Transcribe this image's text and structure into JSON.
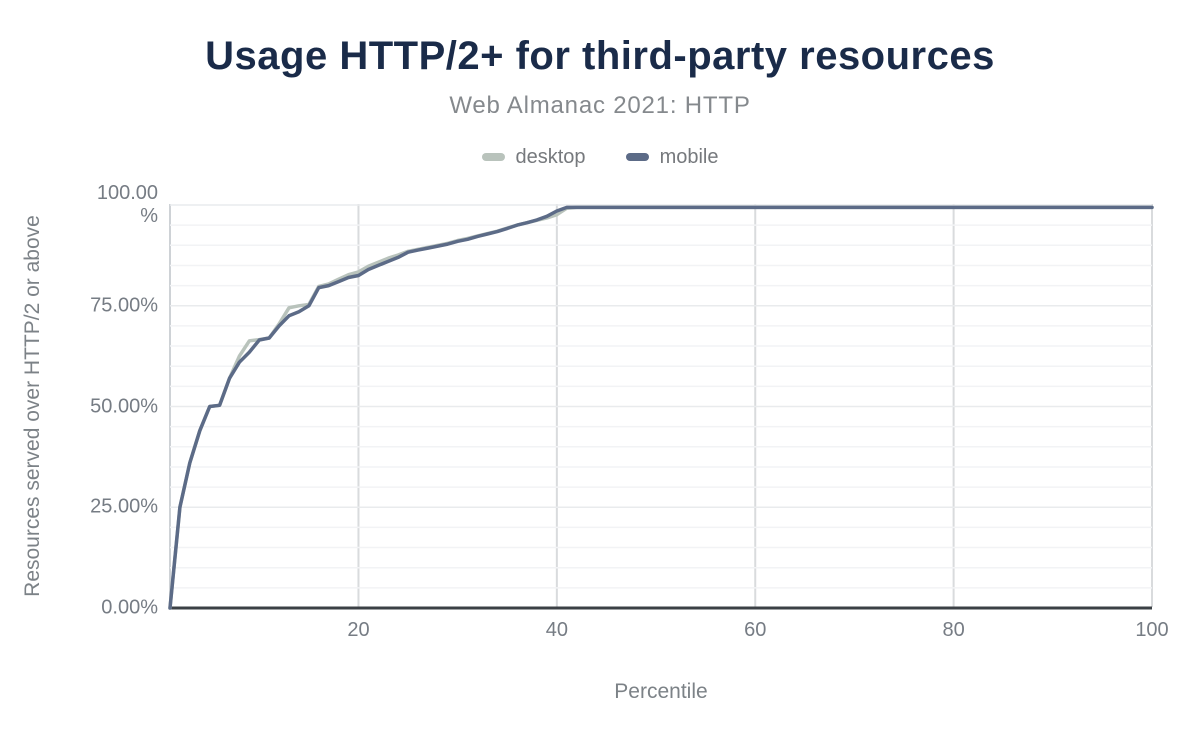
{
  "header": {
    "title": "Usage HTTP/2+ for third-party resources",
    "subtitle": "Web Almanac 2021: HTTP"
  },
  "chart_data": {
    "type": "line",
    "title": "Usage HTTP/2+ for third-party resources",
    "subtitle": "Web Almanac 2021: HTTP",
    "xlabel": "Percentile",
    "ylabel": "Resources served over HTTP/2 or above",
    "x_min": 1,
    "x_max": 100,
    "x_step": 1,
    "ylim": [
      0,
      100
    ],
    "xticks": [
      20,
      40,
      60,
      80,
      100
    ],
    "yticks": [
      {
        "value": 0,
        "label": "0.00%"
      },
      {
        "value": 25,
        "label": "25.00%"
      },
      {
        "value": 50,
        "label": "50.00%"
      },
      {
        "value": 75,
        "label": "75.00%"
      },
      {
        "value": 100,
        "label": "100.00\n%"
      }
    ],
    "minor_gridline_step": 5,
    "grid": true,
    "legend_position": "top",
    "series": [
      {
        "name": "desktop",
        "color": "#b9c3bc",
        "values": [
          0,
          25,
          36,
          44,
          50,
          50.3,
          57,
          62.5,
          66.3,
          66.6,
          67,
          70.5,
          74.5,
          75,
          75.3,
          79.8,
          80.4,
          81.6,
          82.7,
          83.4,
          84.8,
          85.8,
          86.8,
          87.6,
          88.5,
          89,
          89.5,
          90,
          90.5,
          91.2,
          91.7,
          92.3,
          92.9,
          93.5,
          94.3,
          95,
          95.6,
          96.2,
          96.8,
          97.6,
          99.2,
          99.4,
          99.4,
          99.4,
          99.4,
          99.4,
          99.4,
          99.4,
          99.4,
          99.4,
          99.4,
          99.4,
          99.4,
          99.4,
          99.4,
          99.4,
          99.4,
          99.4,
          99.4,
          99.4,
          99.4,
          99.4,
          99.4,
          99.4,
          99.4,
          99.4,
          99.4,
          99.4,
          99.4,
          99.4,
          99.4,
          99.4,
          99.4,
          99.4,
          99.4,
          99.4,
          99.4,
          99.4,
          99.4,
          99.4,
          99.4,
          99.4,
          99.4,
          99.4,
          99.4,
          99.4,
          99.4,
          99.4,
          99.4,
          99.4,
          99.4,
          99.4,
          99.4,
          99.4,
          99.4,
          99.4,
          99.4,
          99.4,
          99.4,
          99.4
        ]
      },
      {
        "name": "mobile",
        "color": "#5c6b87",
        "values": [
          0,
          25,
          36,
          44,
          50,
          50.3,
          57,
          61,
          63.5,
          66.5,
          67,
          70,
          72.5,
          73.5,
          75,
          79.5,
          80,
          81,
          82,
          82.5,
          84,
          85,
          86,
          87,
          88.3,
          88.8,
          89.3,
          89.8,
          90.3,
          91,
          91.5,
          92.2,
          92.8,
          93.4,
          94.2,
          95,
          95.6,
          96.3,
          97.2,
          98.5,
          99.4,
          99.4,
          99.4,
          99.4,
          99.4,
          99.4,
          99.4,
          99.4,
          99.4,
          99.4,
          99.4,
          99.4,
          99.4,
          99.4,
          99.4,
          99.4,
          99.4,
          99.4,
          99.4,
          99.4,
          99.4,
          99.4,
          99.4,
          99.4,
          99.4,
          99.4,
          99.4,
          99.4,
          99.4,
          99.4,
          99.4,
          99.4,
          99.4,
          99.4,
          99.4,
          99.4,
          99.4,
          99.4,
          99.4,
          99.4,
          99.4,
          99.4,
          99.4,
          99.4,
          99.4,
          99.4,
          99.4,
          99.4,
          99.4,
          99.4,
          99.4,
          99.4,
          99.4,
          99.4,
          99.4,
          99.4,
          99.4,
          99.4,
          99.4,
          99.4
        ]
      }
    ],
    "colors": {
      "title": "#1a2b49",
      "subtitle": "#85898d",
      "tick_text": "#767c84",
      "axis_title_text": "#7c8287",
      "gridline_minor": "#f2f3f5",
      "gridline_major": "#e9ebed",
      "gridline_vertical": "#d9dbdd",
      "y_axis_line": "#ced2d6",
      "x_axis_line": "#3b4045"
    }
  }
}
